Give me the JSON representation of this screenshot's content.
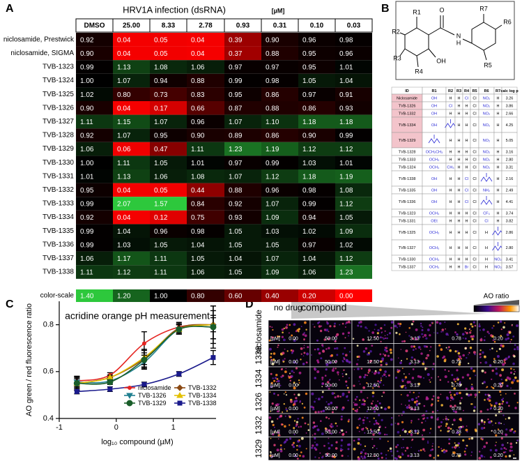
{
  "panel_a": {
    "label": "A",
    "title": "HRV1A infection (dsRNA)",
    "unit": "[µM]",
    "columns": [
      "DMSO",
      "25.00",
      "8.33",
      "2.78",
      "0.93",
      "0.31",
      "0.10",
      "0.03"
    ],
    "rows": [
      {
        "name": "niclosamide, Prestwick",
        "cells": [
          "0.92",
          "0.04",
          "0.05",
          "0.04",
          "0.39",
          "0.90",
          "0.96",
          "0.98"
        ]
      },
      {
        "name": "niclosamide, SIGMA",
        "cells": [
          "0.90",
          "0.04",
          "0.05",
          "0.04",
          "0.37",
          "0.88",
          "0.95",
          "0.96"
        ]
      },
      {
        "name": "TVB-1323",
        "cells": [
          "0.99",
          "1.13",
          "1.08",
          "1.06",
          "0.97",
          "0.97",
          "0.95",
          "1.01"
        ]
      },
      {
        "name": "TVB-1324",
        "cells": [
          "1.00",
          "1.07",
          "0.94",
          "0.88",
          "0.99",
          "0.98",
          "1.05",
          "1.04"
        ]
      },
      {
        "name": "TVB-1325",
        "cells": [
          "1.02",
          "0.80",
          "0.73",
          "0.83",
          "0.95",
          "0.86",
          "0.97",
          "0.91"
        ]
      },
      {
        "name": "TVB-1326",
        "cells": [
          "0.90",
          "0.04",
          "0.17",
          "0.66",
          "0.87",
          "0.88",
          "0.86",
          "0.93"
        ]
      },
      {
        "name": "TVB-1327",
        "cells": [
          "1.11",
          "1.15",
          "1.07",
          "0.96",
          "1.07",
          "1.10",
          "1.18",
          "1.18"
        ]
      },
      {
        "name": "TVB-1328",
        "cells": [
          "0.92",
          "1.07",
          "0.95",
          "0.90",
          "0.89",
          "0.86",
          "0.90",
          "0.99"
        ]
      },
      {
        "name": "TVB-1329",
        "cells": [
          "1.06",
          "0.06",
          "0.47",
          "1.11",
          "1.23",
          "1.19",
          "1.12",
          "1.12"
        ]
      },
      {
        "name": "TVB-1330",
        "cells": [
          "1.00",
          "1.11",
          "1.05",
          "1.01",
          "0.97",
          "0.99",
          "1.03",
          "1.01"
        ]
      },
      {
        "name": "TVB-1331",
        "cells": [
          "1.01",
          "1.13",
          "1.06",
          "1.08",
          "1.07",
          "1.12",
          "1.18",
          "1.19"
        ]
      },
      {
        "name": "TVB-1332",
        "cells": [
          "0.95",
          "0.04",
          "0.05",
          "0.44",
          "0.88",
          "0.96",
          "0.98",
          "1.08"
        ]
      },
      {
        "name": "TVB-1333",
        "cells": [
          "0.99",
          "2.07",
          "1.57",
          "0.84",
          "0.92",
          "1.07",
          "0.99",
          "1.12"
        ]
      },
      {
        "name": "TVB-1334",
        "cells": [
          "0.92",
          "0.04",
          "0.12",
          "0.75",
          "0.93",
          "1.09",
          "0.94",
          "1.05"
        ]
      },
      {
        "name": "TVB-1335",
        "cells": [
          "0.99",
          "1.04",
          "0.96",
          "0.98",
          "1.05",
          "1.03",
          "1.02",
          "1.09"
        ]
      },
      {
        "name": "TVB-1336",
        "cells": [
          "0.99",
          "1.03",
          "1.05",
          "1.04",
          "1.05",
          "1.05",
          "0.97",
          "1.02"
        ]
      },
      {
        "name": "TVB-1337",
        "cells": [
          "1.06",
          "1.17",
          "1.11",
          "1.05",
          "1.04",
          "1.07",
          "1.04",
          "1.12"
        ]
      },
      {
        "name": "TVB-1338",
        "cells": [
          "1.11",
          "1.12",
          "1.11",
          "1.06",
          "1.05",
          "1.09",
          "1.06",
          "1.23"
        ]
      }
    ],
    "scale": {
      "name": "color-scale",
      "cells": [
        "1.40",
        "1.20",
        "1.00",
        "0.80",
        "0.60",
        "0.40",
        "0.20",
        "0.00"
      ]
    }
  },
  "panel_b": {
    "label": "B",
    "structure": {
      "r_groups": [
        "R1",
        "R2",
        "R3",
        "R4",
        "R5",
        "R6",
        "R7"
      ],
      "atoms": [
        "O",
        "N",
        "H",
        "OH"
      ]
    },
    "columns": [
      "ID",
      "R1",
      "R2",
      "R3",
      "R4",
      "R5",
      "R6",
      "R7",
      "calc log p"
    ],
    "rows": [
      {
        "highlight": true,
        "cells": [
          "Niclosamide",
          "OH",
          "H",
          "H",
          "Cl",
          "Cl",
          "NO₂",
          "H",
          "3.26"
        ]
      },
      {
        "highlight": true,
        "cells": [
          "TVB-1326",
          "OH",
          "Cl",
          "H",
          "H",
          "Cl",
          "NO₂",
          "H",
          "3.86"
        ]
      },
      {
        "highlight": true,
        "cells": [
          "TVB-1332",
          "OH",
          "H",
          "H",
          "H",
          "Cl",
          "NO₂",
          "H",
          "2.66"
        ]
      },
      {
        "highlight": true,
        "cells": [
          "TVB-1334",
          "OH",
          null,
          "H",
          "H",
          "Cl",
          "NO₂",
          "H",
          "4.25"
        ]
      },
      {
        "highlight": true,
        "cells": [
          "TVB-1329",
          null,
          "H",
          "H",
          "H",
          "Cl",
          "NO₂",
          "H",
          "5.05"
        ]
      },
      {
        "highlight": false,
        "cells": [
          "TVB-1328",
          "OCH₂CH₃",
          "H",
          "H",
          "H",
          "Cl",
          "NO₂",
          "H",
          "3.16"
        ]
      },
      {
        "highlight": false,
        "cells": [
          "TVB-1333",
          "OCH₃",
          "H",
          "H",
          "H",
          "Cl",
          "NO₂",
          "H",
          "2.80"
        ]
      },
      {
        "highlight": false,
        "cells": [
          "TVB-1324",
          "OCH₃",
          "CH₃",
          "H",
          "H",
          "Cl",
          "NO₂",
          "H",
          "3.31"
        ]
      },
      {
        "highlight": false,
        "cells": [
          "TVB-1338",
          "OH",
          "H",
          "H",
          "Cl",
          "Cl",
          null,
          "H",
          "2.16"
        ]
      },
      {
        "highlight": false,
        "cells": [
          "TVB-1335",
          "OH",
          "H",
          "H",
          "Cl",
          "Cl",
          "NH₂",
          "H",
          "2.49"
        ]
      },
      {
        "highlight": false,
        "cells": [
          "TVB-1336",
          "OH",
          "H",
          "H",
          "Cl",
          "Cl",
          null,
          "H",
          "4.41"
        ]
      },
      {
        "highlight": false,
        "cells": [
          "TVB-1323",
          "OCH₃",
          "H",
          "H",
          "H",
          "Cl",
          "CF₃",
          "H",
          "3.74"
        ]
      },
      {
        "highlight": false,
        "cells": [
          "TVB-1331",
          "OEt",
          "H",
          "H",
          "H",
          "Cl",
          "Cl",
          "H",
          "3.82"
        ]
      },
      {
        "highlight": false,
        "cells": [
          "TVB-1325",
          "OCH₃",
          "H",
          "H",
          "H",
          "Cl",
          "H",
          null,
          "2.86"
        ]
      },
      {
        "highlight": false,
        "cells": [
          "TVB-1327",
          "OCH₃",
          "H",
          "H",
          "H",
          "Cl",
          "H",
          null,
          "2.80"
        ]
      },
      {
        "highlight": false,
        "cells": [
          "TVB-1330",
          "OCH₃",
          "H",
          "H",
          "H",
          "Cl",
          "H",
          "NO₂",
          "3.41"
        ]
      },
      {
        "highlight": false,
        "cells": [
          "TVB-1337",
          "OCH₃",
          "H",
          "H",
          "Br",
          "Cl",
          "H",
          "NO₂",
          "3.57"
        ]
      }
    ]
  },
  "chart_data": {
    "type": "line",
    "label": "C",
    "title": "acridine orange pH measurement",
    "x_label": "log₁₀ compound (µM)",
    "y_label": "AO green / red fluorescence ratio",
    "x": [
      -0.69,
      -0.11,
      0.49,
      1.1,
      1.7
    ],
    "xlim": [
      -1,
      1.75
    ],
    "xticks": [
      -1,
      0,
      1
    ],
    "ylim": [
      0.4,
      0.9
    ],
    "yticks": [
      0.4,
      0.6,
      0.8
    ],
    "series": [
      {
        "name": "niclosamide",
        "color": "#e52420",
        "marker": "circle",
        "values": [
          0.56,
          0.585,
          0.72,
          0.79,
          0.8
        ],
        "errors": [
          0.02,
          0.01,
          0.05,
          0.02,
          0.03
        ]
      },
      {
        "name": "TVB-1332",
        "color": "#8b4a14",
        "marker": "diamond",
        "values": [
          0.55,
          0.575,
          0.655,
          0.785,
          0.8
        ],
        "errors": [
          0.02,
          0.01,
          0.04,
          0.02,
          0.08
        ]
      },
      {
        "name": "TVB-1326",
        "color": "#1f7f8f",
        "marker": "triangle-down",
        "values": [
          0.555,
          0.56,
          0.64,
          0.78,
          0.79
        ],
        "errors": [
          0.02,
          0.01,
          0.03,
          0.02,
          0.05
        ]
      },
      {
        "name": "TVB-1334",
        "color": "#e3c000",
        "marker": "triangle-up",
        "values": [
          0.55,
          0.575,
          0.66,
          0.78,
          0.8
        ],
        "errors": [
          0.03,
          0.01,
          0.03,
          0.02,
          0.06
        ]
      },
      {
        "name": "TVB-1329",
        "color": "#1a5e2a",
        "marker": "circle-large",
        "values": [
          0.55,
          0.555,
          0.65,
          0.78,
          0.79
        ],
        "errors": [
          0.03,
          0.01,
          0.03,
          0.02,
          0.09
        ]
      },
      {
        "name": "TVB-1338",
        "color": "#1a1a8c",
        "marker": "square",
        "values": [
          0.515,
          0.525,
          0.545,
          0.59,
          0.66
        ],
        "errors": [
          0.01,
          0.01,
          0.01,
          0.01,
          0.03
        ]
      }
    ]
  },
  "panel_d": {
    "label": "D",
    "header_left": "no drug",
    "header_compound": "compound",
    "colorbar_label": "AO ratio",
    "rows": [
      "niclosamide",
      "1338",
      "1334",
      "1326",
      "1332",
      "1329"
    ],
    "unit": "[µM]",
    "concentrations": [
      "0.00",
      "50.00",
      "12.50",
      "3.13",
      "0.78",
      "0.20"
    ]
  }
}
